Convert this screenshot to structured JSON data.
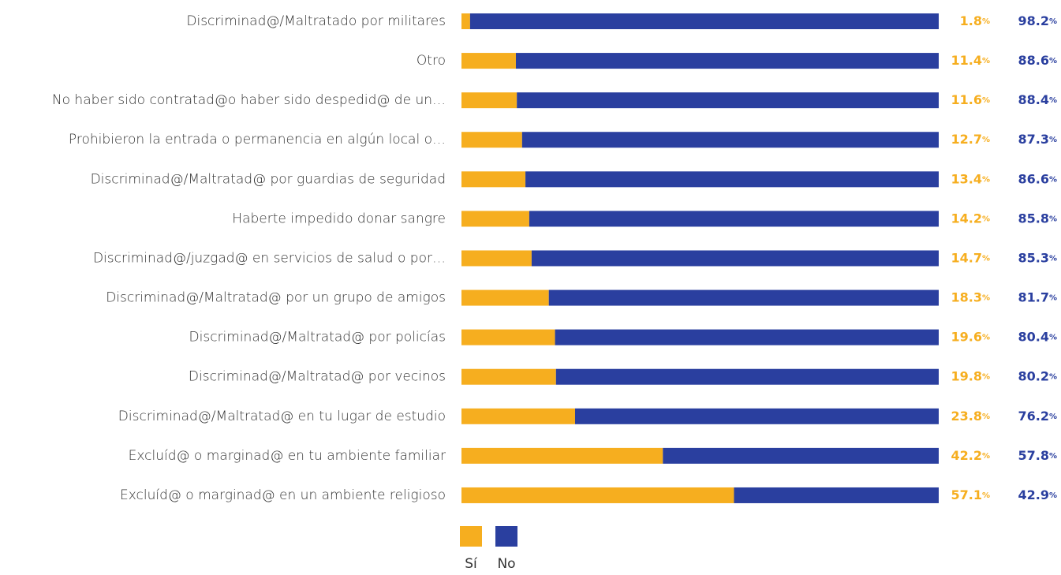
{
  "chart_data": {
    "type": "stacked_bar_horizontal",
    "categories": [
      "Discriminad@/Maltratado por militares",
      "Otro",
      "No haber sido contratad@o haber sido despedid@ de un…",
      "Prohibieron la entrada o permanencia en algún local o…",
      "Discriminad@/Maltratad@ por guardias de seguridad",
      "Haberte impedido donar sangre",
      "Discriminad@/juzgad@ en servicios de salud o por…",
      "Discriminad@/Maltratad@ por un grupo de amigos",
      "Discriminad@/Maltratad@ por policías",
      "Discriminad@/Maltratad@ por vecinos",
      "Discriminad@/Maltratad@ en tu lugar de estudio",
      "Excluíd@ o marginad@ en tu ambiente familiar",
      "Excluíd@ o marginad@ en un ambiente religioso"
    ],
    "series": [
      {
        "name": "Sí",
        "color": "#f6ae1f",
        "values": [
          1.8,
          11.4,
          11.6,
          12.7,
          13.4,
          14.2,
          14.7,
          18.3,
          19.6,
          19.8,
          23.8,
          42.2,
          57.1
        ],
        "value_labels": [
          "1.8%",
          "11.4%",
          "11.6%",
          "12.7%",
          "13.4%",
          "14.2%",
          "14.7%",
          "18.3%",
          "19.6%",
          "19.8%",
          "23.8%",
          "42.2%",
          "57.1%"
        ]
      },
      {
        "name": "No",
        "color": "#2a3f9f",
        "values": [
          98.2,
          88.6,
          88.4,
          87.3,
          86.6,
          85.8,
          85.3,
          81.7,
          80.4,
          80.2,
          76.2,
          57.8,
          42.9
        ],
        "value_labels": [
          "98.2%",
          "88.6%",
          "88.4%",
          "87.3%",
          "86.6%",
          "85.8%",
          "85.3%",
          "81.7%",
          "80.4%",
          "80.2%",
          "76.2%",
          "57.8%",
          "42.9%"
        ]
      }
    ],
    "xlim": [
      0,
      100
    ],
    "legend": "bottom"
  }
}
